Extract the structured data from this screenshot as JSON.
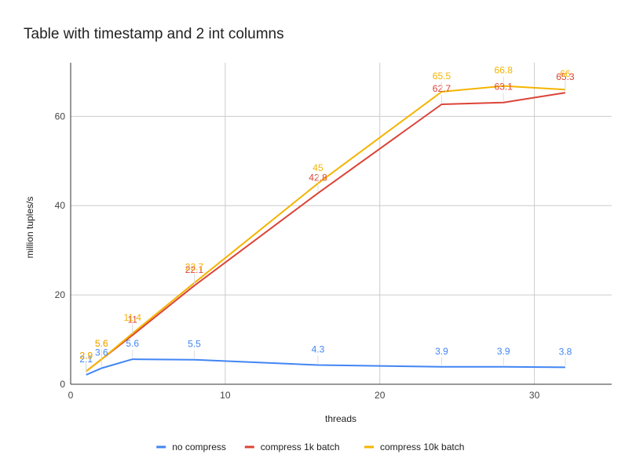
{
  "chart_data": {
    "type": "line",
    "title": "Table with timestamp and 2 int columns",
    "xlabel": "threads",
    "ylabel": "million tuples/s",
    "xlim": [
      0,
      35
    ],
    "ylim": [
      0,
      72
    ],
    "x_ticks": [
      0,
      10,
      20,
      30
    ],
    "y_ticks": [
      0,
      20,
      40,
      60
    ],
    "grid": true,
    "legend_position": "bottom",
    "x": [
      1,
      2,
      4,
      8,
      16,
      24,
      28,
      32
    ],
    "series": [
      {
        "name": "no compress",
        "color": "#4285F4",
        "values": [
          2.1,
          3.6,
          5.6,
          5.5,
          4.3,
          3.9,
          3.9,
          3.8
        ]
      },
      {
        "name": "compress 1k batch",
        "color": "#DB4437",
        "values": [
          2.9,
          5.6,
          11,
          22.1,
          42.8,
          62.7,
          63.1,
          65.3
        ]
      },
      {
        "name": "compress 10k batch",
        "color": "#F4B400",
        "values": [
          2.9,
          5.6,
          11.4,
          22.7,
          45,
          65.5,
          66.8,
          66
        ]
      }
    ]
  }
}
